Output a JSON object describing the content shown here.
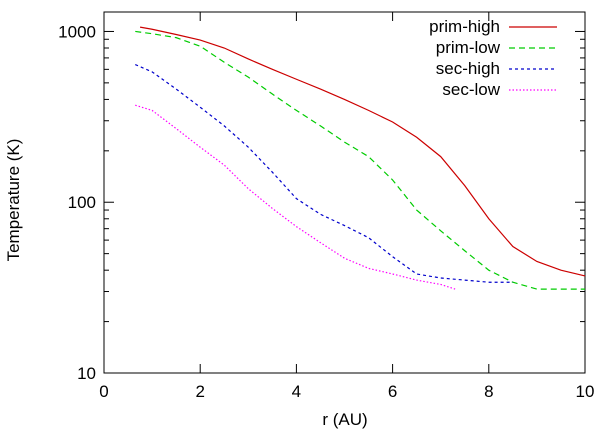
{
  "chart_data": {
    "type": "line",
    "xlabel": "r (AU)",
    "ylabel": "Temperature (K)",
    "xlim": [
      0,
      10
    ],
    "ylim": [
      10,
      1300
    ],
    "yscale": "log",
    "xticks": [
      0,
      2,
      4,
      6,
      8,
      10
    ],
    "yticks": [
      10,
      100,
      1000
    ],
    "xtick_labels": [
      "0",
      "2",
      "4",
      "6",
      "8",
      "10"
    ],
    "ytick_labels": [
      "10",
      "100",
      "1000"
    ],
    "grid": false,
    "legend_position": "top-right",
    "series": [
      {
        "name": "prim-high",
        "color": "#cc0000",
        "dash": "solid",
        "x": [
          0.75,
          1.0,
          1.5,
          2.0,
          2.5,
          3.0,
          3.5,
          4.0,
          4.5,
          5.0,
          5.5,
          6.0,
          6.5,
          7.0,
          7.5,
          8.0,
          8.5,
          9.0,
          9.5,
          10.0
        ],
        "y": [
          1060,
          1030,
          960,
          890,
          800,
          690,
          600,
          525,
          460,
          400,
          345,
          295,
          240,
          185,
          125,
          80,
          55,
          45,
          40,
          37
        ]
      },
      {
        "name": "prim-low",
        "color": "#00cc00",
        "dash": "dashed",
        "x": [
          0.65,
          1.0,
          1.5,
          2.0,
          2.5,
          3.0,
          3.5,
          4.0,
          4.5,
          5.0,
          5.5,
          6.0,
          6.5,
          7.0,
          7.5,
          8.0,
          8.5,
          9.0,
          9.5,
          10.0
        ],
        "y": [
          1000,
          970,
          920,
          820,
          660,
          540,
          430,
          345,
          280,
          225,
          185,
          135,
          90,
          68,
          52,
          40,
          34,
          31,
          31,
          31
        ]
      },
      {
        "name": "sec-high",
        "color": "#0000cc",
        "dash": "dotted",
        "x": [
          0.65,
          1.0,
          1.5,
          2.0,
          2.5,
          3.0,
          3.5,
          4.0,
          4.5,
          5.0,
          5.5,
          6.0,
          6.5,
          7.0,
          7.5,
          8.0,
          8.5
        ],
        "y": [
          640,
          580,
          460,
          360,
          280,
          210,
          150,
          105,
          85,
          73,
          62,
          48,
          38,
          36,
          35,
          34,
          34
        ]
      },
      {
        "name": "sec-low",
        "color": "#ff00ff",
        "dash": "densely-dotted",
        "x": [
          0.65,
          1.0,
          1.5,
          2.0,
          2.5,
          3.0,
          3.5,
          4.0,
          4.5,
          5.0,
          5.5,
          6.0,
          6.5,
          7.0,
          7.3
        ],
        "y": [
          370,
          345,
          270,
          210,
          165,
          120,
          92,
          72,
          58,
          47,
          41,
          38,
          35,
          33,
          31
        ]
      }
    ]
  }
}
